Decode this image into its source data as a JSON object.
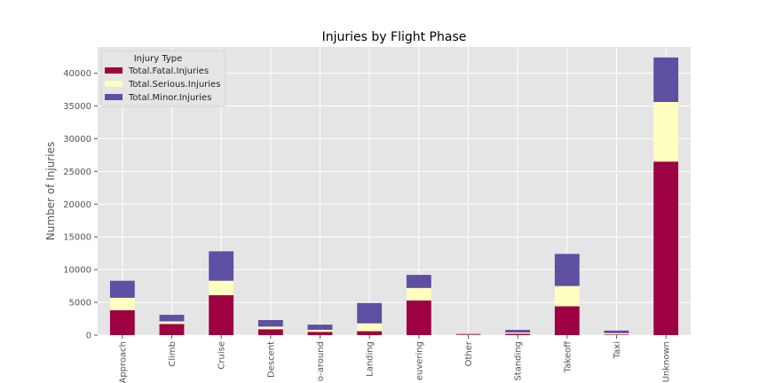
{
  "chart_data": {
    "type": "bar",
    "stacked": true,
    "title": "Injuries by Flight Phase",
    "xlabel": "",
    "ylabel": "Number of Injuries",
    "ylim": [
      0,
      44000
    ],
    "yticks": [
      0,
      5000,
      10000,
      15000,
      20000,
      25000,
      30000,
      35000,
      40000
    ],
    "categories": [
      "Approach",
      "Climb",
      "Cruise",
      "Descent",
      "o-around",
      "Landing",
      "euvering",
      "Other",
      "Standing",
      "Takeoff",
      "Taxi",
      "Unknown"
    ],
    "legend": {
      "title": "Injury Type",
      "placement": "upper-left"
    },
    "grid": true,
    "series": [
      {
        "name": "Total.Fatal.Injuries",
        "color": "#9e0142",
        "values": [
          3800,
          1700,
          6100,
          900,
          500,
          600,
          5300,
          100,
          200,
          4400,
          100,
          26500
        ]
      },
      {
        "name": "Total.Serious.Injuries",
        "color": "#ffffbf",
        "values": [
          1900,
          400,
          2200,
          400,
          300,
          1200,
          1900,
          50,
          200,
          3100,
          200,
          9100
        ]
      },
      {
        "name": "Total.Minor.Injuries",
        "color": "#5e4fa2",
        "values": [
          2600,
          1000,
          4500,
          1000,
          800,
          3100,
          2000,
          50,
          400,
          4900,
          400,
          6800
        ]
      }
    ]
  }
}
